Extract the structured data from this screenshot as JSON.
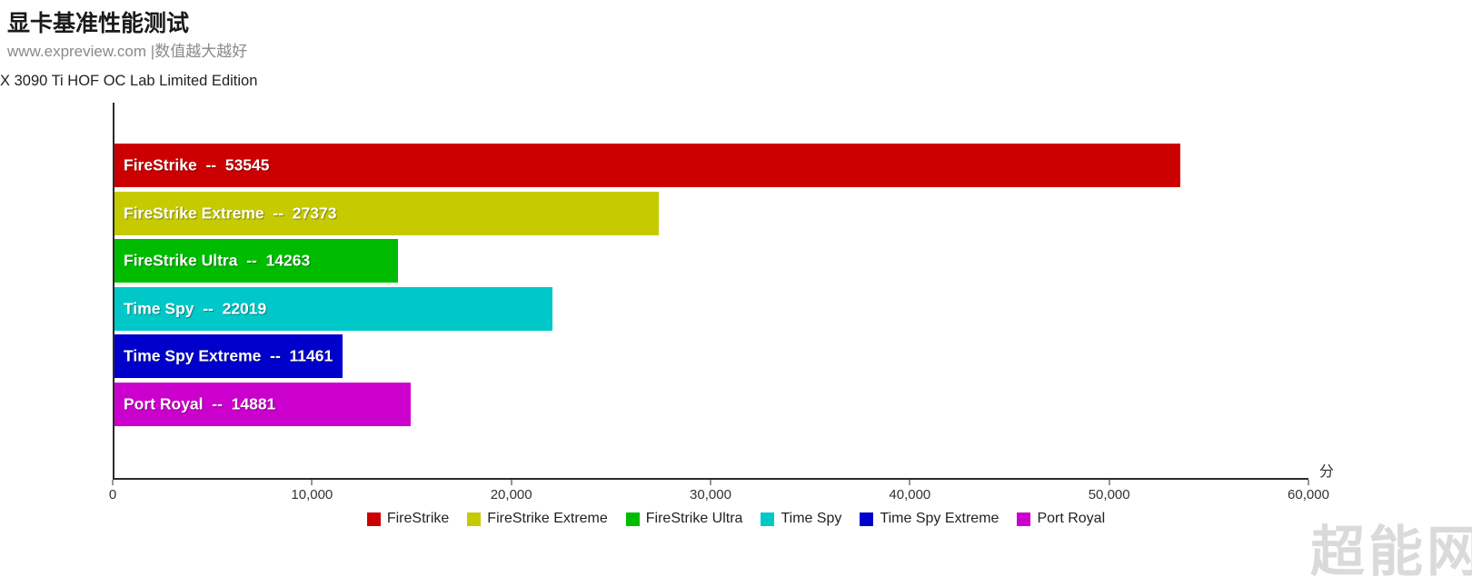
{
  "header": {
    "title": "显卡基准性能测试",
    "subtitle": "www.expreview.com |数值越大越好"
  },
  "chart_data": {
    "type": "bar",
    "orientation": "horizontal",
    "title": "显卡基准性能测试",
    "series_label": "X 3090 Ti HOF OC Lab Limited Edition",
    "categories": [
      "FireStrike",
      "FireStrike Extreme",
      "FireStrike Ultra",
      "Time Spy",
      "Time Spy Extreme",
      "Port Royal"
    ],
    "values": [
      53545,
      27373,
      14263,
      22019,
      11461,
      14881
    ],
    "colors": [
      "#cc0000",
      "#c6ca00",
      "#00bc00",
      "#00c8c8",
      "#0000cc",
      "#cc00cc"
    ],
    "label_separator": "--",
    "xlim": [
      0,
      60000
    ],
    "x_ticks": [
      0,
      10000,
      20000,
      30000,
      40000,
      50000,
      60000
    ],
    "x_tick_labels": [
      "0",
      "10,000",
      "20,000",
      "30,000",
      "40,000",
      "50,000",
      "60,000"
    ],
    "x_axis_unit": "分",
    "grid": false,
    "legend_position": "bottom",
    "legend": [
      "FireStrike",
      "FireStrike Extreme",
      "FireStrike Ultra",
      "Time Spy",
      "Time Spy Extreme",
      "Port Royal"
    ]
  },
  "watermark": "超能网"
}
